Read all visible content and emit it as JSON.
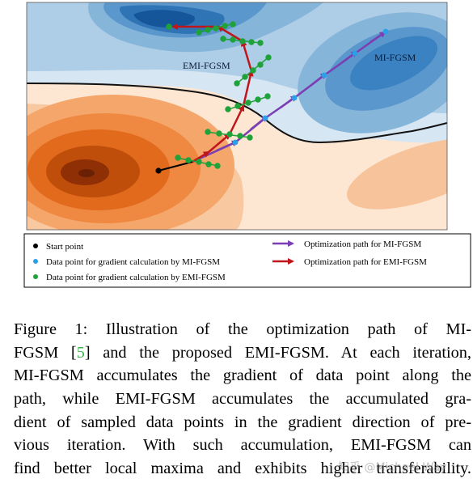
{
  "figure": {
    "labels": {
      "emi": "EMI-FGSM",
      "mi": "MI-FGSM"
    },
    "legend": {
      "start_point": "Start point",
      "mi_data_point": "Data point for gradient calculation by MI-FGSM",
      "emi_data_point": "Data point for gradient calculation by EMI-FGSM",
      "mi_path": "Optimization path for MI-FGSM",
      "emi_path": "Optimization path for EMI-FGSM"
    },
    "colors": {
      "mi_path": "#7b3fb3",
      "emi_path": "#c0161b",
      "mi_point": "#2aa0e8",
      "emi_point": "#1fa23a",
      "start_point": "#000000",
      "boundary": "#111111"
    }
  },
  "caption": {
    "line1_a": "Figure 1:  Illustration of the optimization path of MI-",
    "line2_a": "FGSM [",
    "line2_ref": "5",
    "line2_b": "] and the proposed EMI-FGSM. At each iteration,",
    "line3": "MI-FGSM accumulates the gradient of data point along the",
    "line4": "path, while EMI-FGSM accumulates the accumulated gra-",
    "line5": "dient of sampled data points in the gradient direction of pre-",
    "line6": "vious iteration.  With such accumulation, EMI-FGSM can",
    "line7": "find better local maxima and exhibits higher transferability."
  },
  "watermark": "知乎 @Michael Way"
}
